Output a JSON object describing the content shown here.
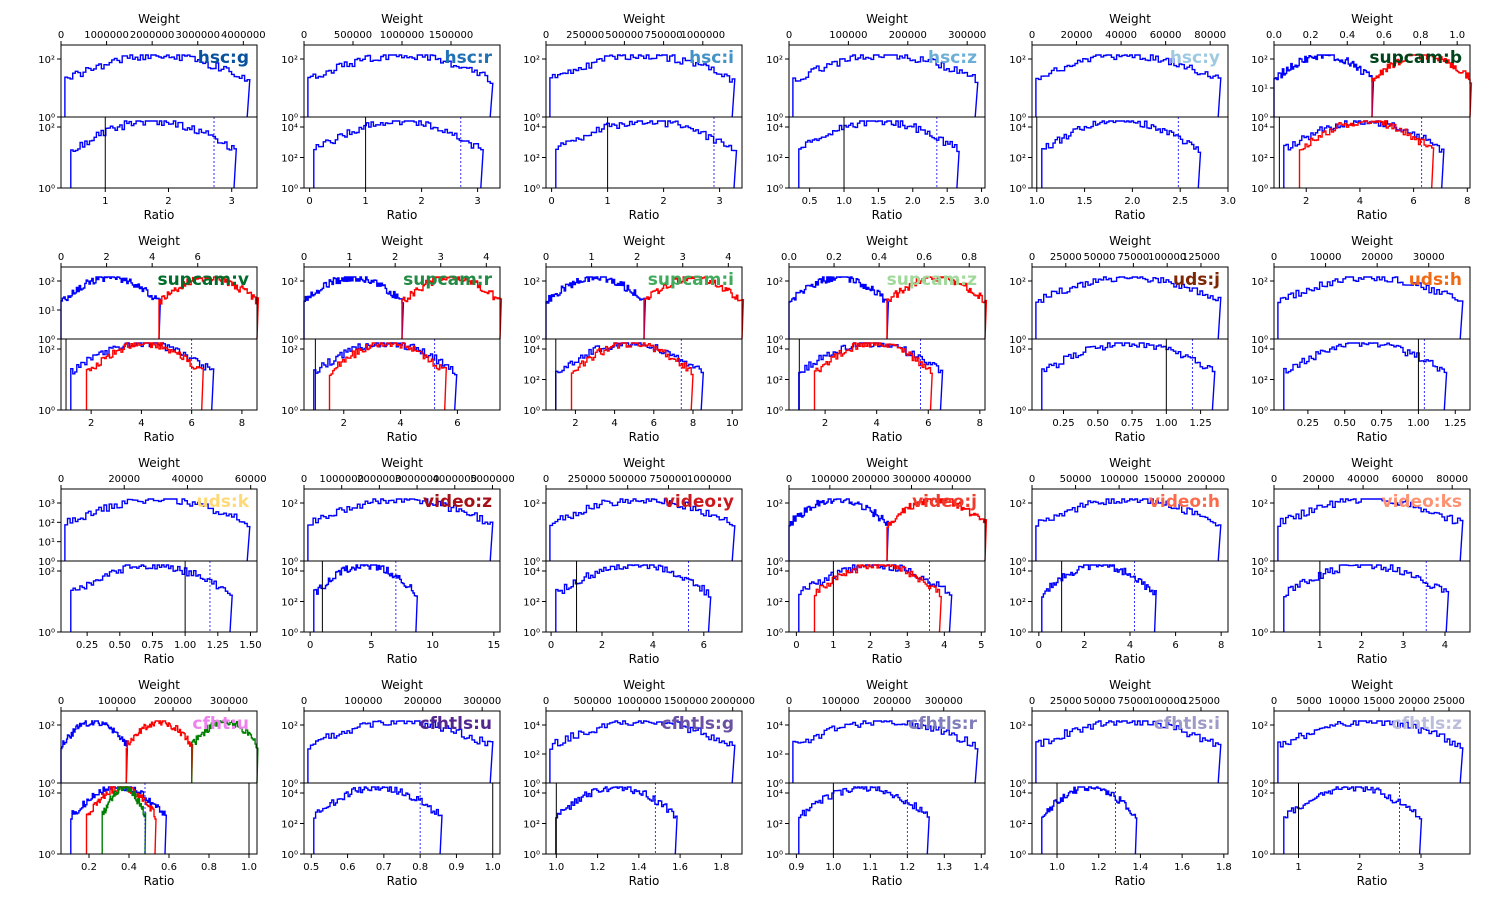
{
  "chart_data": {
    "type": "line",
    "x_axis_label": "Ratio",
    "top_axis_label": "Weight",
    "y_scale": "log",
    "colors": {
      "primary": "#0000ff",
      "secondary": "#ff0000",
      "tertiary": "#008000",
      "median_line": "#000000"
    },
    "panels": [
      {
        "label": "hsc:g",
        "label_color": "#08519c",
        "weight_ticks": [
          "0",
          "1000000",
          "2000000",
          "3000000",
          "4000000"
        ],
        "weight_range": [
          0,
          4300000
        ],
        "top_yticks": [
          "10⁰",
          "10²"
        ],
        "ratio_ticks": [
          "1",
          "2",
          "3"
        ],
        "ratio_range": [
          0.3,
          3.4
        ],
        "bottom_yticks": [
          "10⁰",
          "10²"
        ],
        "ratio_line": 1.0,
        "median_ratio": 2.72,
        "series": [
          "primary"
        ]
      },
      {
        "label": "hsc:r",
        "label_color": "#2171b5",
        "weight_ticks": [
          "0",
          "500000",
          "1000000",
          "1500000"
        ],
        "weight_range": [
          0,
          2000000
        ],
        "top_yticks": [
          "10⁰",
          "10²"
        ],
        "ratio_ticks": [
          "0",
          "1",
          "2",
          "3"
        ],
        "ratio_range": [
          -0.1,
          3.4
        ],
        "bottom_yticks": [
          "10⁰",
          "10²",
          "10⁴"
        ],
        "ratio_line": 1.0,
        "median_ratio": 2.7,
        "series": [
          "primary"
        ]
      },
      {
        "label": "hsc:i",
        "label_color": "#4292c6",
        "weight_ticks": [
          "0",
          "250000",
          "500000",
          "750000",
          "1000000"
        ],
        "weight_range": [
          0,
          1250000
        ],
        "top_yticks": [
          "10⁰",
          "10²"
        ],
        "ratio_ticks": [
          "0",
          "1",
          "2",
          "3"
        ],
        "ratio_range": [
          -0.1,
          3.4
        ],
        "bottom_yticks": [
          "10⁰",
          "10²",
          "10⁴"
        ],
        "ratio_line": 1.0,
        "median_ratio": 2.9,
        "series": [
          "primary"
        ]
      },
      {
        "label": "hsc:z",
        "label_color": "#6baed6",
        "weight_ticks": [
          "0",
          "100000",
          "200000",
          "300000"
        ],
        "weight_range": [
          0,
          330000
        ],
        "top_yticks": [
          "10⁰",
          "10²"
        ],
        "ratio_ticks": [
          "0.5",
          "1.0",
          "1.5",
          "2.0",
          "2.5",
          "3.0"
        ],
        "ratio_range": [
          0.2,
          3.05
        ],
        "bottom_yticks": [
          "10⁰",
          "10²",
          "10⁴"
        ],
        "ratio_line": 1.0,
        "median_ratio": 2.35,
        "series": [
          "primary"
        ]
      },
      {
        "label": "hsc:y",
        "label_color": "#9ecae1",
        "weight_ticks": [
          "0",
          "20000",
          "40000",
          "60000",
          "80000"
        ],
        "weight_range": [
          0,
          88000
        ],
        "top_yticks": [
          "10⁰",
          "10²"
        ],
        "ratio_ticks": [
          "1.0",
          "1.5",
          "2.0",
          "2.5",
          "3.0"
        ],
        "ratio_range": [
          0.95,
          3.0
        ],
        "bottom_yticks": [
          "10⁰",
          "10²",
          "10⁴"
        ],
        "ratio_line": 1.0,
        "median_ratio": 2.48,
        "series": [
          "primary"
        ]
      },
      {
        "label": "supcam:b",
        "label_color": "#00441b",
        "weight_ticks": [
          "0.0",
          "0.2",
          "0.4",
          "0.6",
          "0.8",
          "1.0"
        ],
        "weight_range": [
          0,
          1.07
        ],
        "top_yticks": [
          "10⁰",
          "10¹",
          "10²"
        ],
        "ratio_ticks": [
          "2",
          "4",
          "6",
          "8"
        ],
        "ratio_range": [
          0.8,
          8.1
        ],
        "bottom_yticks": [
          "10⁰",
          "10²",
          "10⁴"
        ],
        "ratio_line": 1.0,
        "median_ratio": 6.3,
        "series": [
          "primary",
          "secondary"
        ]
      },
      {
        "label": "supcam:v",
        "label_color": "#006d2c",
        "weight_ticks": [
          "0",
          "2",
          "4",
          "6"
        ],
        "weight_range": [
          0,
          8.6
        ],
        "top_yticks": [
          "10⁰",
          "10¹",
          "10²"
        ],
        "ratio_ticks": [
          "2",
          "4",
          "6",
          "8"
        ],
        "ratio_range": [
          0.8,
          8.6
        ],
        "bottom_yticks": [
          "10⁰",
          "10²"
        ],
        "ratio_line": 1.0,
        "median_ratio": 6.0,
        "series": [
          "primary",
          "secondary"
        ]
      },
      {
        "label": "supcam:r",
        "label_color": "#238b45",
        "weight_ticks": [
          "0",
          "1",
          "2",
          "3",
          "4"
        ],
        "weight_range": [
          0,
          4.3
        ],
        "top_yticks": [
          "10⁰",
          "10²"
        ],
        "ratio_ticks": [
          "2",
          "4",
          "6"
        ],
        "ratio_range": [
          0.6,
          7.5
        ],
        "bottom_yticks": [
          "10⁰",
          "10²"
        ],
        "ratio_line": 1.0,
        "median_ratio": 5.2,
        "series": [
          "primary",
          "secondary"
        ]
      },
      {
        "label": "supcam:i",
        "label_color": "#41ab5d",
        "weight_ticks": [
          "0",
          "1",
          "2",
          "3",
          "4"
        ],
        "weight_range": [
          0,
          4.3
        ],
        "top_yticks": [
          "10⁰",
          "10²"
        ],
        "ratio_ticks": [
          "2",
          "4",
          "6",
          "8",
          "10"
        ],
        "ratio_range": [
          0.5,
          10.5
        ],
        "bottom_yticks": [
          "10⁰",
          "10²",
          "10⁴"
        ],
        "ratio_line": 1.0,
        "median_ratio": 7.4,
        "series": [
          "primary",
          "secondary"
        ]
      },
      {
        "label": "supcam:z",
        "label_color": "#a1d99b",
        "weight_ticks": [
          "0.0",
          "0.2",
          "0.4",
          "0.6",
          "0.8"
        ],
        "weight_range": [
          0,
          0.87
        ],
        "top_yticks": [
          "10⁰",
          "10²"
        ],
        "ratio_ticks": [
          "2",
          "4",
          "6",
          "8"
        ],
        "ratio_range": [
          0.6,
          8.2
        ],
        "bottom_yticks": [
          "10⁰",
          "10²",
          "10⁴"
        ],
        "ratio_line": 1.0,
        "median_ratio": 5.7,
        "series": [
          "primary",
          "secondary"
        ]
      },
      {
        "label": "uds:j",
        "label_color": "#7f2704",
        "weight_ticks": [
          "0",
          "25000",
          "50000",
          "75000",
          "100000",
          "125000"
        ],
        "weight_range": [
          0,
          145000
        ],
        "top_yticks": [
          "10⁰",
          "10²"
        ],
        "ratio_ticks": [
          "0.25",
          "0.50",
          "0.75",
          "1.00",
          "1.25"
        ],
        "ratio_range": [
          0.02,
          1.45
        ],
        "bottom_yticks": [
          "10⁰",
          "10²"
        ],
        "ratio_line": 1.0,
        "median_ratio": 1.19,
        "series": [
          "primary"
        ]
      },
      {
        "label": "uds:h",
        "label_color": "#f16913",
        "weight_ticks": [
          "0",
          "10000",
          "20000",
          "30000"
        ],
        "weight_range": [
          0,
          38000
        ],
        "top_yticks": [
          "10⁰",
          "10²"
        ],
        "ratio_ticks": [
          "0.25",
          "0.50",
          "0.75",
          "1.00",
          "1.25"
        ],
        "ratio_range": [
          0.02,
          1.35
        ],
        "bottom_yticks": [
          "10⁰",
          "10²",
          "10⁴"
        ],
        "ratio_line": 1.0,
        "median_ratio": 1.04,
        "series": [
          "primary"
        ]
      },
      {
        "label": "uds:k",
        "label_color": "#fed976",
        "weight_ticks": [
          "0",
          "20000",
          "40000",
          "60000"
        ],
        "weight_range": [
          0,
          62000
        ],
        "top_yticks": [
          "10⁰",
          "10¹",
          "10²",
          "10³"
        ],
        "ratio_ticks": [
          "0.25",
          "0.50",
          "0.75",
          "1.00",
          "1.25",
          "1.50"
        ],
        "ratio_range": [
          0.05,
          1.55
        ],
        "bottom_yticks": [
          "10⁰",
          "10²"
        ],
        "ratio_line": 1.0,
        "median_ratio": 1.19,
        "series": [
          "primary"
        ]
      },
      {
        "label": "video:z",
        "label_color": "#a50f15",
        "weight_ticks": [
          "0",
          "1000000",
          "2000000",
          "3000000",
          "4000000",
          "5000000"
        ],
        "weight_range": [
          0,
          5200000
        ],
        "top_yticks": [
          "10⁰",
          "10²"
        ],
        "ratio_ticks": [
          "0",
          "5",
          "10",
          "15"
        ],
        "ratio_range": [
          -0.5,
          15.5
        ],
        "bottom_yticks": [
          "10⁰",
          "10²",
          "10⁴"
        ],
        "ratio_line": 1.0,
        "median_ratio": 7.0,
        "series": [
          "primary"
        ]
      },
      {
        "label": "video:y",
        "label_color": "#cb181d",
        "weight_ticks": [
          "0",
          "250000",
          "500000",
          "750000",
          "1000000"
        ],
        "weight_range": [
          0,
          1200000
        ],
        "top_yticks": [
          "10⁰",
          "10²"
        ],
        "ratio_ticks": [
          "0",
          "2",
          "4",
          "6"
        ],
        "ratio_range": [
          -0.2,
          7.5
        ],
        "bottom_yticks": [
          "10⁰",
          "10²",
          "10⁴"
        ],
        "ratio_line": 1.0,
        "median_ratio": 5.4,
        "series": [
          "primary"
        ]
      },
      {
        "label": "video:j",
        "label_color": "#ef3b2c",
        "weight_ticks": [
          "0",
          "100000",
          "200000",
          "300000",
          "400000"
        ],
        "weight_range": [
          0,
          480000
        ],
        "top_yticks": [
          "10⁰",
          "10²"
        ],
        "ratio_ticks": [
          "0",
          "1",
          "2",
          "3",
          "4",
          "5"
        ],
        "ratio_range": [
          -0.2,
          5.1
        ],
        "bottom_yticks": [
          "10⁰",
          "10²",
          "10⁴"
        ],
        "ratio_line": 1.0,
        "median_ratio": 3.6,
        "series": [
          "primary",
          "secondary"
        ]
      },
      {
        "label": "video:h",
        "label_color": "#fb6a4a",
        "weight_ticks": [
          "0",
          "50000",
          "100000",
          "150000",
          "200000"
        ],
        "weight_range": [
          0,
          225000
        ],
        "top_yticks": [
          "10⁰",
          "10²"
        ],
        "ratio_ticks": [
          "0",
          "2",
          "4",
          "6",
          "8"
        ],
        "ratio_range": [
          -0.3,
          8.3
        ],
        "bottom_yticks": [
          "10⁰",
          "10²",
          "10⁴"
        ],
        "ratio_line": 1.0,
        "median_ratio": 4.2,
        "series": [
          "primary"
        ]
      },
      {
        "label": "video:ks",
        "label_color": "#fc9272",
        "weight_ticks": [
          "0",
          "20000",
          "40000",
          "60000",
          "80000"
        ],
        "weight_range": [
          0,
          88000
        ],
        "top_yticks": [
          "10⁰",
          "10²"
        ],
        "ratio_ticks": [
          "1",
          "2",
          "3",
          "4"
        ],
        "ratio_range": [
          -0.1,
          4.6
        ],
        "bottom_yticks": [
          "10⁰",
          "10²"
        ],
        "ratio_line": 1.0,
        "median_ratio": 3.55,
        "series": [
          "primary"
        ]
      },
      {
        "label": "cfht:u",
        "label_color": "#ee82ee",
        "weight_ticks": [
          "0",
          "100000",
          "200000",
          "300000"
        ],
        "weight_range": [
          0,
          350000
        ],
        "top_yticks": [
          "10⁰",
          "10²"
        ],
        "ratio_ticks": [
          "0.2",
          "0.4",
          "0.6",
          "0.8",
          "1.0"
        ],
        "ratio_range": [
          0.06,
          1.04
        ],
        "bottom_yticks": [
          "10⁰",
          "10²"
        ],
        "ratio_line": 1.0,
        "median_ratio": 0.48,
        "series": [
          "primary",
          "secondary",
          "tertiary"
        ]
      },
      {
        "label": "cfhtls:u",
        "label_color": "#54278f",
        "weight_ticks": [
          "0",
          "100000",
          "200000",
          "300000"
        ],
        "weight_range": [
          0,
          330000
        ],
        "top_yticks": [
          "10⁰",
          "10²"
        ],
        "ratio_ticks": [
          "0.5",
          "0.6",
          "0.7",
          "0.8",
          "0.9",
          "1.0"
        ],
        "ratio_range": [
          0.48,
          1.02
        ],
        "bottom_yticks": [
          "10⁰",
          "10²",
          "10⁴"
        ],
        "ratio_line": 1.0,
        "median_ratio": 0.8,
        "series": [
          "primary"
        ]
      },
      {
        "label": "cfhtls:g",
        "label_color": "#6a51a3",
        "weight_ticks": [
          "0",
          "500000",
          "1000000",
          "1500000",
          "2000000"
        ],
        "weight_range": [
          0,
          2100000
        ],
        "top_yticks": [
          "10⁰",
          "10²",
          "10⁴"
        ],
        "ratio_ticks": [
          "1.0",
          "1.2",
          "1.4",
          "1.6",
          "1.8"
        ],
        "ratio_range": [
          0.95,
          1.9
        ],
        "bottom_yticks": [
          "10⁰",
          "10²",
          "10⁴"
        ],
        "ratio_line": 1.0,
        "median_ratio": 1.48,
        "series": [
          "primary"
        ]
      },
      {
        "label": "cfhtls:r",
        "label_color": "#807dba",
        "weight_ticks": [
          "0",
          "100000",
          "200000",
          "300000"
        ],
        "weight_range": [
          0,
          380000
        ],
        "top_yticks": [
          "10⁰",
          "10²",
          "10⁴"
        ],
        "ratio_ticks": [
          "0.9",
          "1.0",
          "1.1",
          "1.2",
          "1.3",
          "1.4"
        ],
        "ratio_range": [
          0.88,
          1.41
        ],
        "bottom_yticks": [
          "10⁰",
          "10²",
          "10⁴"
        ],
        "ratio_line": 1.0,
        "median_ratio": 1.2,
        "series": [
          "primary"
        ]
      },
      {
        "label": "cfhtls:i",
        "label_color": "#9e9ac8",
        "weight_ticks": [
          "0",
          "25000",
          "50000",
          "75000",
          "100000",
          "125000"
        ],
        "weight_range": [
          0,
          145000
        ],
        "top_yticks": [
          "10⁰",
          "10²"
        ],
        "ratio_ticks": [
          "1.0",
          "1.2",
          "1.4",
          "1.6",
          "1.8"
        ],
        "ratio_range": [
          0.88,
          1.82
        ],
        "bottom_yticks": [
          "10⁰",
          "10²",
          "10⁴"
        ],
        "ratio_line": 1.0,
        "median_ratio": 1.28,
        "series": [
          "primary"
        ]
      },
      {
        "label": "cfhtls:z",
        "label_color": "#bcbddc",
        "weight_ticks": [
          "0",
          "5000",
          "10000",
          "15000",
          "20000",
          "25000"
        ],
        "weight_range": [
          0,
          28000
        ],
        "top_yticks": [
          "10⁰",
          "10²"
        ],
        "ratio_ticks": [
          "1",
          "2",
          "3"
        ],
        "ratio_range": [
          0.6,
          3.8
        ],
        "bottom_yticks": [
          "10⁰",
          "10²"
        ],
        "ratio_line": 1.0,
        "median_ratio": 2.65,
        "series": [
          "primary"
        ]
      }
    ]
  }
}
